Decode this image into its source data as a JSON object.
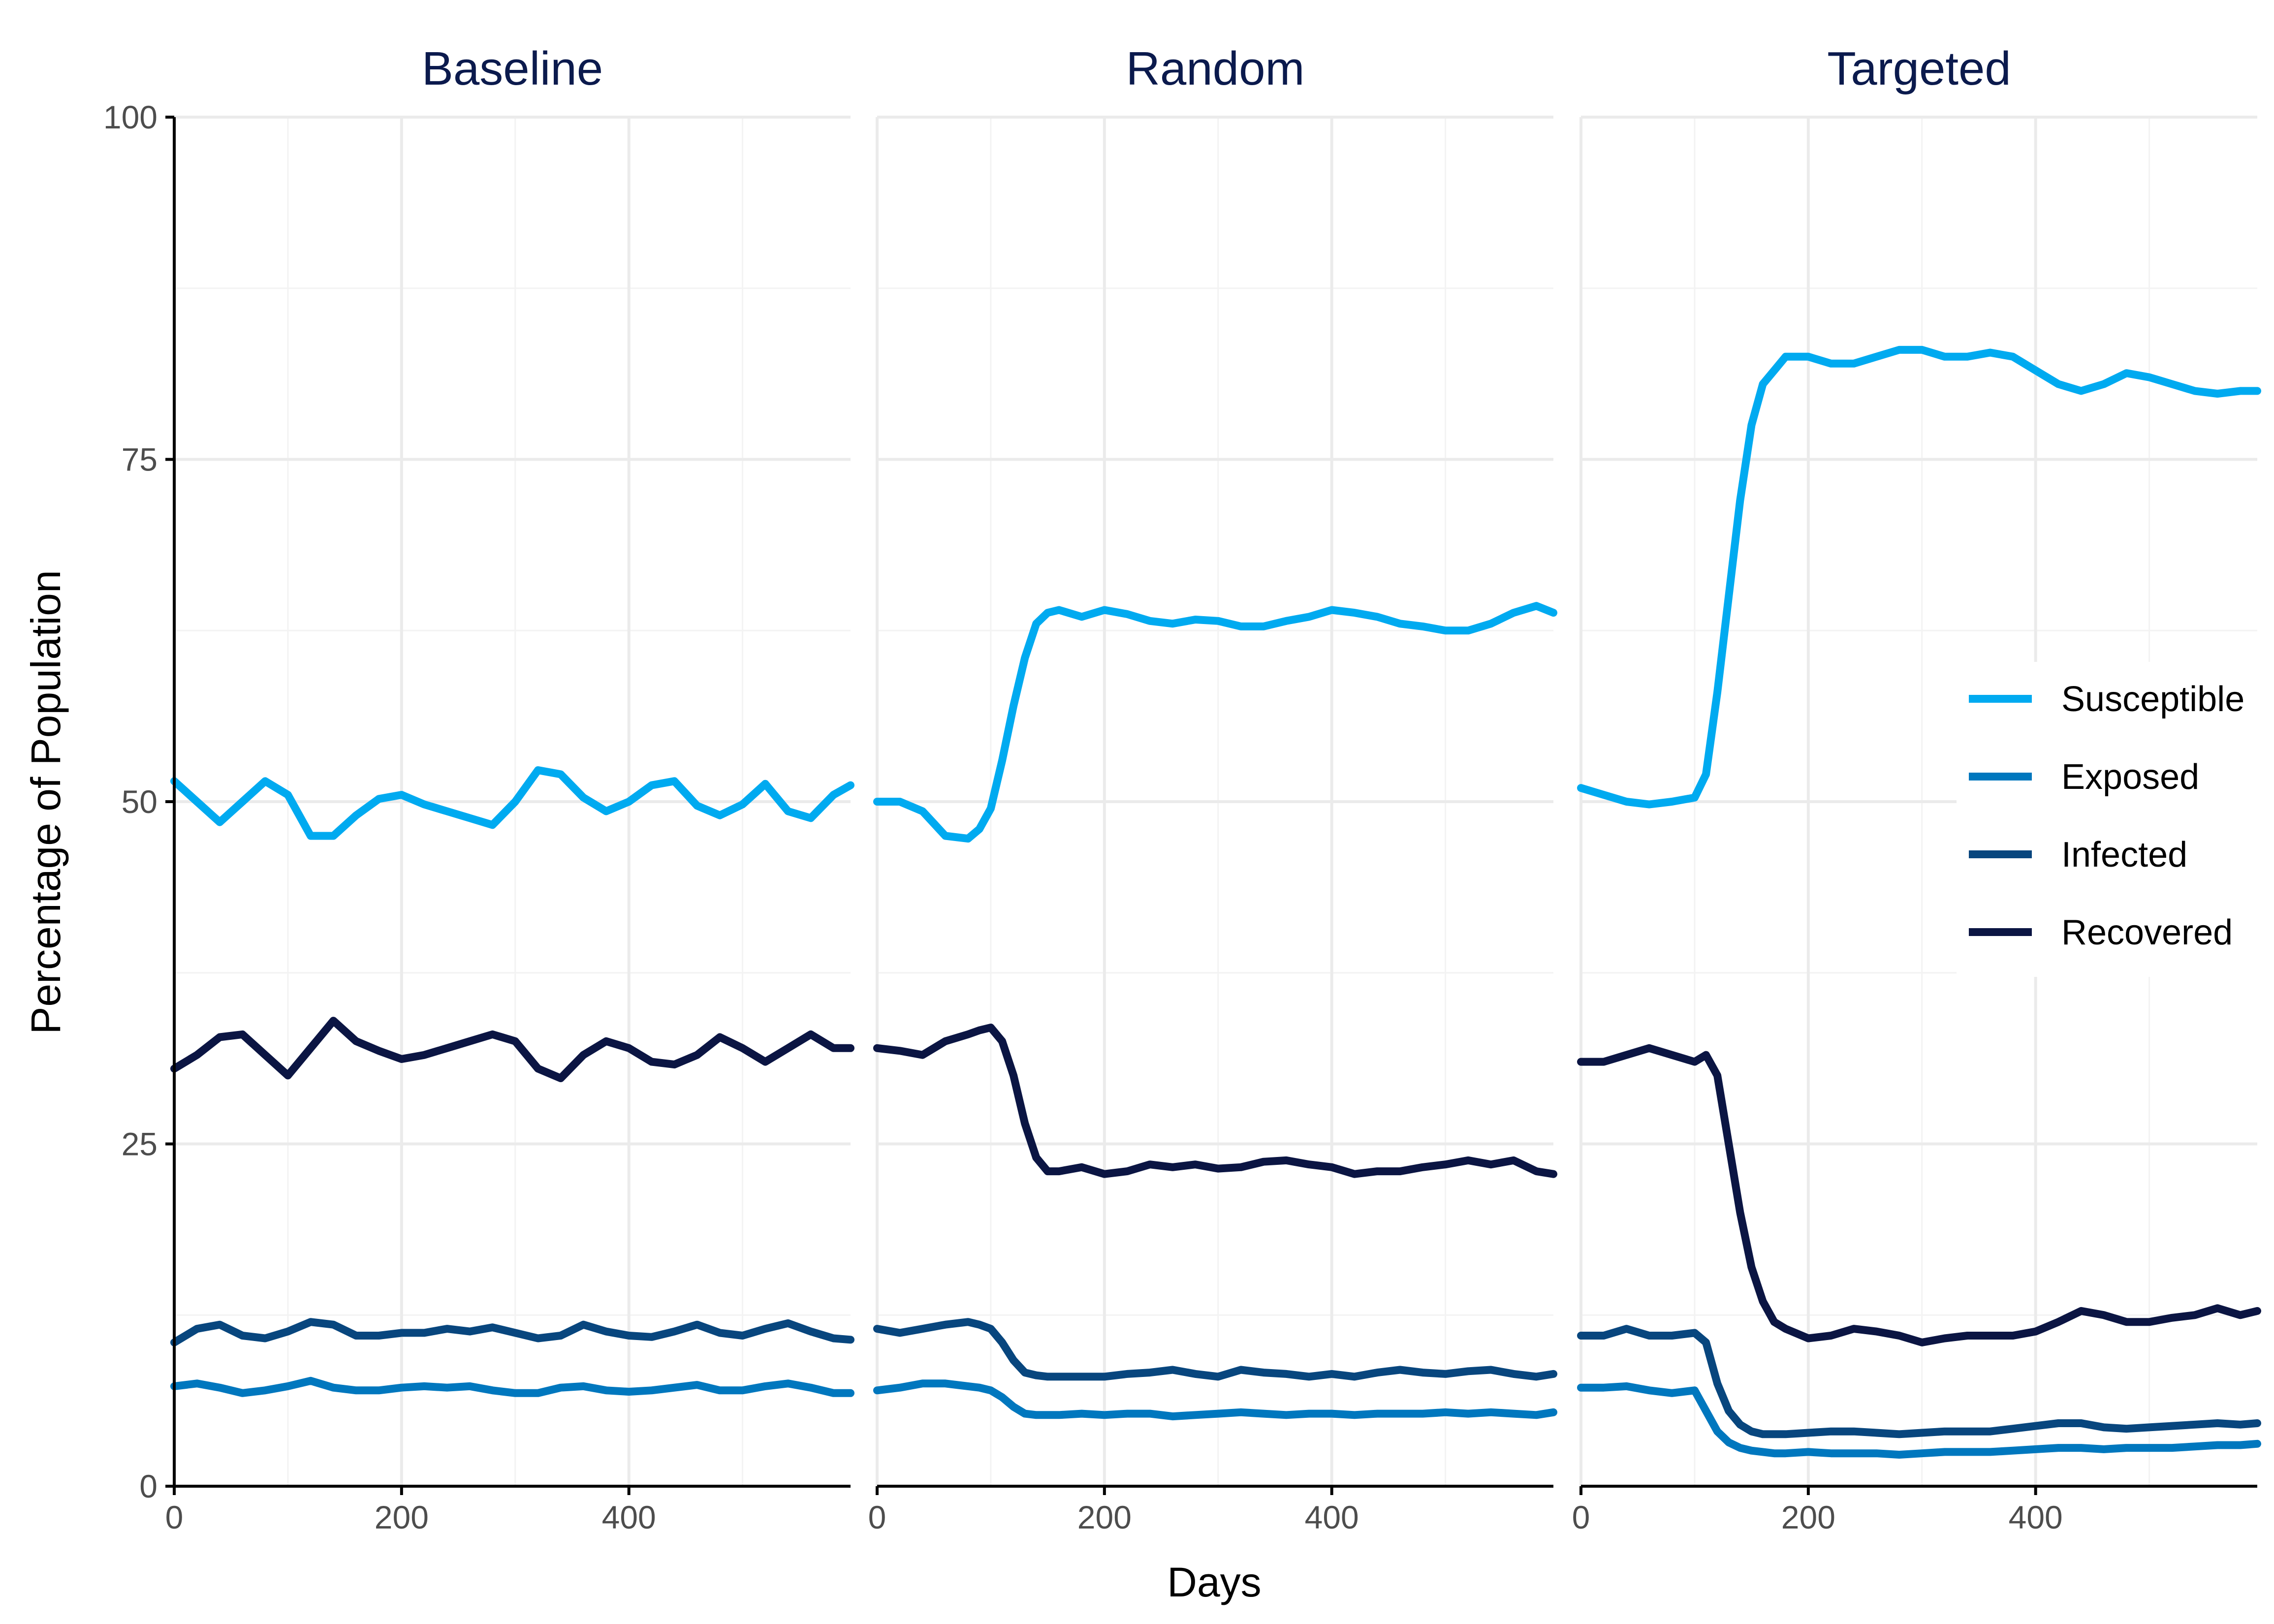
{
  "chart_data": {
    "type": "line",
    "xlabel": "Days",
    "ylabel": "Percentage of Population",
    "xlim": [
      0,
      595
    ],
    "ylim": [
      0,
      100
    ],
    "xticks": [
      0,
      200,
      400
    ],
    "yticks": [
      0,
      25,
      50,
      75,
      100
    ],
    "grid": true,
    "legend_position": "right",
    "series_styles": [
      {
        "name": "Susceptible",
        "color": "#00aaf0"
      },
      {
        "name": "Exposed",
        "color": "#0077be"
      },
      {
        "name": "Infected",
        "color": "#08467e"
      },
      {
        "name": "Recovered",
        "color": "#0b1543"
      }
    ],
    "panels": [
      {
        "title": "Baseline",
        "x": [
          0,
          20,
          40,
          60,
          80,
          100,
          120,
          140,
          160,
          180,
          200,
          220,
          240,
          260,
          280,
          300,
          320,
          340,
          360,
          380,
          400,
          420,
          440,
          460,
          480,
          500,
          520,
          540,
          560,
          580,
          595
        ],
        "series": [
          {
            "name": "Susceptible",
            "values": [
              51.5,
              50.0,
              48.5,
              50.0,
              51.5,
              50.5,
              47.5,
              47.5,
              49.0,
              50.2,
              50.5,
              49.8,
              49.3,
              48.8,
              48.3,
              50.0,
              52.3,
              52.0,
              50.3,
              49.3,
              50.0,
              51.2,
              51.5,
              49.7,
              49.0,
              49.8,
              51.3,
              49.3,
              48.8,
              50.5,
              51.2
            ]
          },
          {
            "name": "Exposed",
            "values": [
              7.3,
              7.5,
              7.2,
              6.8,
              7.0,
              7.3,
              7.7,
              7.2,
              7.0,
              7.0,
              7.2,
              7.3,
              7.2,
              7.3,
              7.0,
              6.8,
              6.8,
              7.2,
              7.3,
              7.0,
              6.9,
              7.0,
              7.2,
              7.4,
              7.0,
              7.0,
              7.3,
              7.5,
              7.2,
              6.8,
              6.8
            ]
          },
          {
            "name": "Infected",
            "values": [
              10.5,
              11.5,
              11.8,
              11.0,
              10.8,
              11.3,
              12.0,
              11.8,
              11.0,
              11.0,
              11.2,
              11.2,
              11.5,
              11.3,
              11.6,
              11.2,
              10.8,
              11.0,
              11.8,
              11.3,
              11.0,
              10.9,
              11.3,
              11.8,
              11.2,
              11.0,
              11.5,
              11.9,
              11.3,
              10.8,
              10.7
            ]
          },
          {
            "name": "Recovered",
            "values": [
              30.5,
              31.5,
              32.8,
              33.0,
              31.5,
              30.0,
              32.0,
              34.0,
              32.5,
              31.8,
              31.2,
              31.5,
              32.0,
              32.5,
              33.0,
              32.5,
              30.5,
              29.8,
              31.5,
              32.5,
              32.0,
              31.0,
              30.8,
              31.5,
              32.8,
              32.0,
              31.0,
              32.0,
              33.0,
              32.0,
              32.0
            ]
          }
        ]
      },
      {
        "title": "Random",
        "x": [
          0,
          20,
          40,
          60,
          80,
          90,
          100,
          110,
          120,
          130,
          140,
          150,
          160,
          180,
          200,
          220,
          240,
          260,
          280,
          300,
          320,
          340,
          360,
          380,
          400,
          420,
          440,
          460,
          480,
          500,
          520,
          540,
          560,
          580,
          595
        ],
        "series": [
          {
            "name": "Susceptible",
            "values": [
              50.0,
              50.0,
              49.3,
              47.5,
              47.3,
              48.0,
              49.5,
              53.0,
              57.0,
              60.5,
              63.0,
              63.8,
              64.0,
              63.5,
              64.0,
              63.7,
              63.2,
              63.0,
              63.3,
              63.2,
              62.8,
              62.8,
              63.2,
              63.5,
              64.0,
              63.8,
              63.5,
              63.0,
              62.8,
              62.5,
              62.5,
              63.0,
              63.8,
              64.3,
              63.8
            ]
          },
          {
            "name": "Exposed",
            "values": [
              7.0,
              7.2,
              7.5,
              7.5,
              7.3,
              7.2,
              7.0,
              6.5,
              5.8,
              5.3,
              5.2,
              5.2,
              5.2,
              5.3,
              5.2,
              5.3,
              5.3,
              5.1,
              5.2,
              5.3,
              5.4,
              5.3,
              5.2,
              5.3,
              5.3,
              5.2,
              5.3,
              5.3,
              5.3,
              5.4,
              5.3,
              5.4,
              5.3,
              5.2,
              5.4
            ]
          },
          {
            "name": "Infected",
            "values": [
              11.5,
              11.2,
              11.5,
              11.8,
              12.0,
              11.8,
              11.5,
              10.5,
              9.2,
              8.3,
              8.1,
              8.0,
              8.0,
              8.0,
              8.0,
              8.2,
              8.3,
              8.5,
              8.2,
              8.0,
              8.5,
              8.3,
              8.2,
              8.0,
              8.2,
              8.0,
              8.3,
              8.5,
              8.3,
              8.2,
              8.4,
              8.5,
              8.2,
              8.0,
              8.2
            ]
          },
          {
            "name": "Recovered",
            "values": [
              32.0,
              31.8,
              31.5,
              32.5,
              33.0,
              33.3,
              33.5,
              32.5,
              30.0,
              26.5,
              24.0,
              23.0,
              23.0,
              23.3,
              22.8,
              23.0,
              23.5,
              23.3,
              23.5,
              23.2,
              23.3,
              23.7,
              23.8,
              23.5,
              23.3,
              22.8,
              23.0,
              23.0,
              23.3,
              23.5,
              23.8,
              23.5,
              23.8,
              23.0,
              22.8
            ]
          }
        ]
      },
      {
        "title": "Targeted",
        "x": [
          0,
          20,
          40,
          60,
          80,
          100,
          110,
          120,
          130,
          140,
          150,
          160,
          170,
          180,
          200,
          220,
          240,
          260,
          280,
          300,
          320,
          340,
          360,
          380,
          400,
          420,
          440,
          460,
          480,
          500,
          520,
          540,
          560,
          580,
          595
        ],
        "series": [
          {
            "name": "Susceptible",
            "values": [
              51.0,
              50.5,
              50.0,
              49.8,
              50.0,
              50.3,
              52.0,
              58.0,
              65.0,
              72.0,
              77.5,
              80.5,
              81.5,
              82.5,
              82.5,
              82.0,
              82.0,
              82.5,
              83.0,
              83.0,
              82.5,
              82.5,
              82.8,
              82.5,
              81.5,
              80.5,
              80.0,
              80.5,
              81.3,
              81.0,
              80.5,
              80.0,
              79.8,
              80.0,
              80.0
            ]
          },
          {
            "name": "Exposed",
            "values": [
              7.2,
              7.2,
              7.3,
              7.0,
              6.8,
              7.0,
              5.5,
              4.0,
              3.2,
              2.8,
              2.6,
              2.5,
              2.4,
              2.4,
              2.5,
              2.4,
              2.4,
              2.4,
              2.3,
              2.4,
              2.5,
              2.5,
              2.5,
              2.6,
              2.7,
              2.8,
              2.8,
              2.7,
              2.8,
              2.8,
              2.8,
              2.9,
              3.0,
              3.0,
              3.1
            ]
          },
          {
            "name": "Infected",
            "values": [
              11.0,
              11.0,
              11.5,
              11.0,
              11.0,
              11.2,
              10.5,
              7.5,
              5.5,
              4.5,
              4.0,
              3.8,
              3.8,
              3.8,
              3.9,
              4.0,
              4.0,
              3.9,
              3.8,
              3.9,
              4.0,
              4.0,
              4.0,
              4.2,
              4.4,
              4.6,
              4.6,
              4.3,
              4.2,
              4.3,
              4.4,
              4.5,
              4.6,
              4.5,
              4.6
            ]
          },
          {
            "name": "Recovered",
            "values": [
              31.0,
              31.0,
              31.5,
              32.0,
              31.5,
              31.0,
              31.5,
              30.0,
              25.0,
              20.0,
              16.0,
              13.5,
              12.0,
              11.5,
              10.8,
              11.0,
              11.5,
              11.3,
              11.0,
              10.5,
              10.8,
              11.0,
              11.0,
              11.0,
              11.3,
              12.0,
              12.8,
              12.5,
              12.0,
              12.0,
              12.3,
              12.5,
              13.0,
              12.5,
              12.8
            ]
          }
        ]
      }
    ]
  }
}
